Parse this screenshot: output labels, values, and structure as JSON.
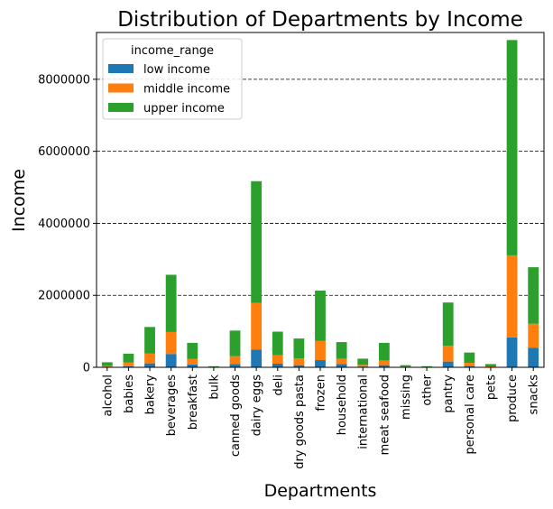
{
  "chart_data": {
    "type": "bar",
    "stacked": true,
    "title": "Distribution of Departments by Income",
    "xlabel": "Departments",
    "ylabel": "Income",
    "ylim": [
      0,
      9300000
    ],
    "yticks": [
      0,
      2000000,
      4000000,
      6000000,
      8000000
    ],
    "ytick_labels": [
      "0",
      "2000000",
      "4000000",
      "6000000",
      "8000000"
    ],
    "grid": "horizontal-dashed",
    "legend": {
      "title": "income_range",
      "placement": "top-left"
    },
    "categories": [
      "alcohol",
      "babies",
      "bakery",
      "beverages",
      "breakfast",
      "bulk",
      "canned goods",
      "dairy eggs",
      "deli",
      "dry goods pasta",
      "frozen",
      "household",
      "international",
      "meat seafood",
      "missing",
      "other",
      "pantry",
      "personal care",
      "pets",
      "produce",
      "snacks"
    ],
    "series": [
      {
        "name": "low income",
        "color": "#1f77b4",
        "values": [
          15000,
          30000,
          110000,
          370000,
          80000,
          3000,
          90000,
          490000,
          100000,
          60000,
          200000,
          90000,
          20000,
          60000,
          5000,
          3000,
          160000,
          35000,
          8000,
          830000,
          540000
        ]
      },
      {
        "name": "middle income",
        "color": "#ff7f0e",
        "values": [
          25000,
          100000,
          270000,
          610000,
          150000,
          7000,
          220000,
          1300000,
          240000,
          190000,
          530000,
          150000,
          50000,
          130000,
          12000,
          7000,
          440000,
          90000,
          17000,
          2280000,
          670000
        ]
      },
      {
        "name": "upper income",
        "color": "#2ca02c",
        "values": [
          100000,
          250000,
          740000,
          1590000,
          450000,
          20000,
          710000,
          3380000,
          650000,
          550000,
          1400000,
          460000,
          170000,
          490000,
          43000,
          20000,
          1200000,
          285000,
          65000,
          5980000,
          1570000
        ]
      }
    ]
  }
}
